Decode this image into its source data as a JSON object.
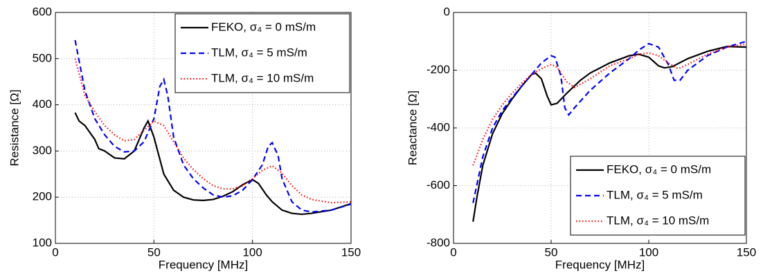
{
  "chart_data": [
    {
      "type": "line",
      "xlabel": "Frequency [MHz]",
      "ylabel": "Resistance [Ω]",
      "xlim": [
        0,
        150
      ],
      "xticks": [
        0,
        50,
        100,
        150
      ],
      "ylim": [
        100,
        600
      ],
      "yticks": [
        100,
        200,
        300,
        400,
        500,
        600
      ],
      "grid": true,
      "legend": "upper right",
      "series": [
        {
          "name": "FEKO, σ₄ = 0 mS/m",
          "color": "#000000",
          "line_style": "solid",
          "x": [
            10,
            12,
            15,
            20,
            22,
            25,
            30,
            35,
            40,
            45,
            47,
            50,
            55,
            60,
            65,
            70,
            75,
            80,
            85,
            90,
            95,
            100,
            103,
            107,
            110,
            115,
            120,
            125,
            130,
            140,
            150
          ],
          "values": [
            383,
            365,
            355,
            325,
            305,
            300,
            285,
            283,
            300,
            350,
            365,
            330,
            250,
            215,
            200,
            194,
            193,
            195,
            202,
            212,
            227,
            238,
            230,
            205,
            190,
            172,
            165,
            163,
            165,
            172,
            186
          ]
        },
        {
          "name": "TLM, σ₄ = 5 mS/m",
          "color": "#0000ff",
          "line_style": "dashed",
          "x": [
            10,
            15,
            20,
            25,
            30,
            35,
            40,
            45,
            50,
            53,
            55,
            57,
            60,
            65,
            70,
            75,
            80,
            85,
            90,
            95,
            100,
            105,
            108,
            110,
            113,
            115,
            120,
            125,
            130,
            140,
            150
          ],
          "values": [
            540,
            430,
            370,
            335,
            310,
            298,
            300,
            320,
            370,
            440,
            455,
            420,
            330,
            270,
            240,
            220,
            205,
            200,
            203,
            215,
            238,
            270,
            310,
            318,
            290,
            240,
            190,
            172,
            168,
            172,
            185
          ]
        },
        {
          "name": "TLM, σ₄ = 10 mS/m",
          "color": "#ff0000",
          "line_style": "dotted",
          "x": [
            10,
            15,
            20,
            25,
            30,
            35,
            40,
            45,
            50,
            55,
            60,
            65,
            70,
            75,
            80,
            85,
            90,
            95,
            100,
            105,
            110,
            115,
            120,
            125,
            130,
            140,
            150
          ],
          "values": [
            500,
            420,
            385,
            355,
            335,
            322,
            325,
            345,
            365,
            355,
            320,
            285,
            260,
            240,
            225,
            218,
            218,
            225,
            240,
            258,
            268,
            252,
            225,
            205,
            195,
            188,
            190
          ]
        }
      ]
    },
    {
      "type": "line",
      "xlabel": "Frequency [MHz]",
      "ylabel": "Reactance [Ω]",
      "xlim": [
        0,
        150
      ],
      "xticks": [
        0,
        50,
        100,
        150
      ],
      "ylim": [
        -800,
        0
      ],
      "yticks": [
        -800,
        -600,
        -400,
        -200,
        0
      ],
      "grid": true,
      "legend": "lower right",
      "series": [
        {
          "name": "FEKO, σ₄ = 0 mS/m",
          "color": "#000000",
          "line_style": "solid",
          "x": [
            10,
            12,
            15,
            20,
            25,
            30,
            35,
            40,
            42,
            45,
            48,
            50,
            53,
            58,
            65,
            70,
            80,
            90,
            95,
            100,
            105,
            108,
            112,
            120,
            130,
            140,
            150
          ],
          "values": [
            -725,
            -640,
            -530,
            -420,
            -350,
            -300,
            -255,
            -215,
            -210,
            -230,
            -290,
            -320,
            -315,
            -280,
            -235,
            -210,
            -175,
            -150,
            -145,
            -155,
            -185,
            -192,
            -188,
            -160,
            -135,
            -118,
            -120
          ]
        },
        {
          "name": "TLM, σ₄ = 5 mS/m",
          "color": "#0000ff",
          "line_style": "dashed",
          "x": [
            10,
            15,
            20,
            25,
            30,
            35,
            40,
            45,
            50,
            52,
            55,
            57,
            59,
            62,
            70,
            80,
            90,
            95,
            100,
            105,
            110,
            113,
            116,
            120,
            130,
            140,
            150
          ],
          "values": [
            -660,
            -500,
            -400,
            -340,
            -295,
            -255,
            -215,
            -175,
            -150,
            -155,
            -220,
            -330,
            -355,
            -330,
            -270,
            -210,
            -160,
            -130,
            -108,
            -120,
            -180,
            -235,
            -235,
            -200,
            -150,
            -120,
            -100
          ]
        },
        {
          "name": "TLM, σ₄ = 10 mS/m",
          "color": "#ff0000",
          "line_style": "dotted",
          "x": [
            10,
            15,
            20,
            25,
            30,
            35,
            40,
            45,
            50,
            53,
            58,
            62,
            70,
            80,
            90,
            95,
            100,
            105,
            110,
            115,
            120,
            130,
            140,
            150
          ],
          "values": [
            -530,
            -440,
            -370,
            -320,
            -280,
            -245,
            -215,
            -195,
            -180,
            -190,
            -240,
            -260,
            -230,
            -185,
            -160,
            -145,
            -140,
            -150,
            -175,
            -195,
            -180,
            -145,
            -120,
            -110
          ]
        }
      ]
    }
  ]
}
